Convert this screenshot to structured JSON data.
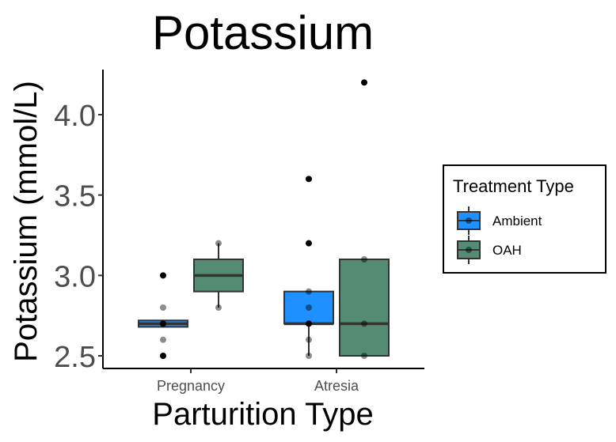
{
  "chart_data": {
    "type": "box",
    "title": "Potassium",
    "xlabel": "Parturition Type",
    "ylabel": "Potassium (mmol/L)",
    "categories": [
      "Pregnancy",
      "Atresia"
    ],
    "ylim": [
      2.45,
      4.3
    ],
    "yticks": [
      "2.5",
      "3.0",
      "3.5",
      "4.0"
    ],
    "grid": false,
    "legend": {
      "title": "Treatment Type",
      "position": "right",
      "entries": [
        "Ambient",
        "OAH"
      ]
    },
    "series": [
      {
        "name": "Ambient",
        "color": "#1e90ff",
        "boxes": [
          {
            "category": "Pregnancy",
            "q1": 2.68,
            "median": 2.7,
            "q3": 2.72,
            "whisker_low": 2.68,
            "whisker_high": 2.72,
            "points": [
              3.0,
              2.8,
              2.7,
              2.7,
              2.6,
              2.5
            ],
            "point_alpha": [
              1,
              0.45,
              1,
              0.45,
              0.45,
              1
            ]
          },
          {
            "category": "Atresia",
            "q1": 2.7,
            "median": 2.7,
            "q3": 2.9,
            "whisker_low": 2.5,
            "whisker_high": 2.9,
            "points": [
              3.6,
              3.2,
              2.9,
              2.8,
              2.7,
              2.6,
              2.5
            ],
            "point_alpha": [
              1,
              1,
              0.45,
              0.45,
              1,
              0.45,
              0.45
            ]
          }
        ]
      },
      {
        "name": "OAH",
        "color": "#548b73",
        "boxes": [
          {
            "category": "Pregnancy",
            "q1": 2.9,
            "median": 3.0,
            "q3": 3.1,
            "whisker_low": 2.8,
            "whisker_high": 3.2,
            "points": [
              3.2,
              2.8
            ],
            "point_alpha": [
              0.45,
              0.45
            ]
          },
          {
            "category": "Atresia",
            "q1": 2.5,
            "median": 2.7,
            "q3": 3.1,
            "whisker_low": 2.5,
            "whisker_high": 3.1,
            "points": [
              4.2,
              3.1,
              2.7,
              2.5
            ],
            "point_alpha": [
              1,
              0.45,
              0.45,
              0.45
            ]
          }
        ]
      }
    ]
  }
}
